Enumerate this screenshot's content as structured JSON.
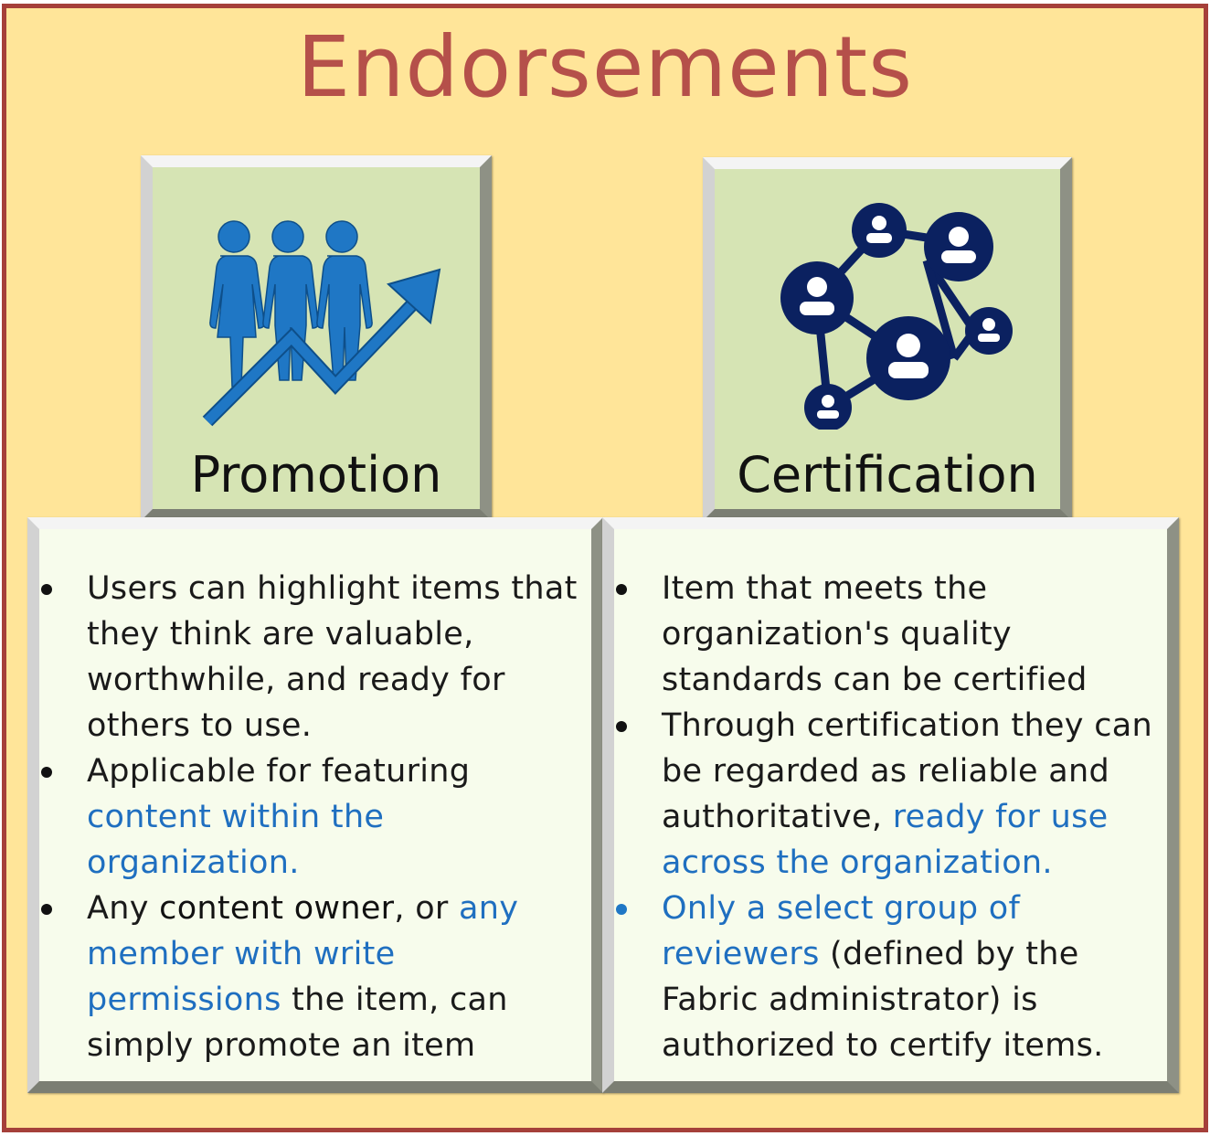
{
  "title": "Endorsements",
  "promotion": {
    "label": "Promotion",
    "icon": "people-growth-arrow-icon",
    "bullets": [
      {
        "segments": [
          {
            "text": "Users can highlight items that they think are valuable, worthwhile, and ready for others to use.",
            "style": "normal"
          }
        ]
      },
      {
        "segments": [
          {
            "text": "Applicable for featuring ",
            "style": "normal"
          },
          {
            "text": "content within the organization.",
            "style": "blue"
          }
        ]
      },
      {
        "segments": [
          {
            "text": "Any ",
            "style": "normal"
          },
          {
            "text": "content owner",
            "style": "dark"
          },
          {
            "text": ", or ",
            "style": "normal"
          },
          {
            "text": "any member with write permissions",
            "style": "blue"
          },
          {
            "text": " the item, can simply promote an item",
            "style": "normal"
          }
        ]
      }
    ]
  },
  "certification": {
    "label": "Certification",
    "icon": "people-network-icon",
    "bullets": [
      {
        "segments": [
          {
            "text": "Item that meets the organization's quality standards can be certified",
            "style": "normal"
          }
        ]
      },
      {
        "segments": [
          {
            "text": "Through certification they can be regarded as reliable and authoritative, ",
            "style": "normal"
          },
          {
            "text": "ready for use across the organization.",
            "style": "blue"
          }
        ]
      },
      {
        "bullet_color": "blue",
        "segments": [
          {
            "text": "Only a select group of reviewers",
            "style": "blue"
          },
          {
            "text": " (defined by the Fabric administrator) is authorized to certify items.",
            "style": "normal"
          }
        ]
      }
    ]
  },
  "colors": {
    "background": "#FFE599",
    "frame_border": "#A5403A",
    "title": "#B5504A",
    "tile": "#D6E4B4",
    "card": "#F7FCEC",
    "icon_blue": "#1F77C5",
    "icon_navy": "#0B2160",
    "link_blue": "#1F6FC0"
  }
}
